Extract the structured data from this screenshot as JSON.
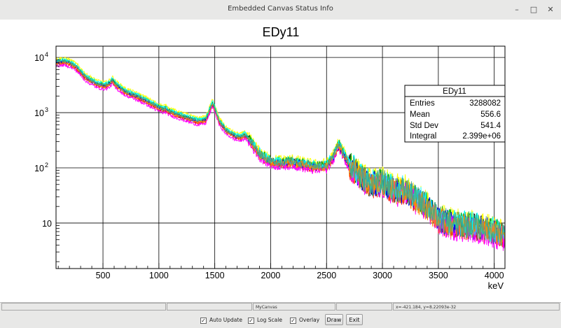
{
  "window": {
    "title": "Embedded Canvas Status Info",
    "minimize_icon": "minimize-icon",
    "maximize_icon": "maximize-icon",
    "close_icon": "close-icon"
  },
  "chart_data": {
    "type": "line",
    "title": "EDy11",
    "xlabel": "keV",
    "ylabel": "",
    "log_y": true,
    "xlim": [
      80,
      4096
    ],
    "ylim": [
      1.5,
      16000
    ],
    "grid": true,
    "x_ticks": [
      "500",
      "1000",
      "1500",
      "2000",
      "2500",
      "3000",
      "3500",
      "4000"
    ],
    "y_ticks": [
      {
        "label": "10",
        "exp": "4"
      },
      {
        "label": "10",
        "exp": "3"
      },
      {
        "label": "10",
        "exp": "2"
      },
      {
        "label": "10",
        "exp": ""
      }
    ],
    "series_colors": [
      "#000000",
      "#ff0000",
      "#ffff00",
      "#00aa00",
      "#0000ff",
      "#ff00ff",
      "#00ffff",
      "#ff8800",
      "#44aa88"
    ],
    "envelope_x": [
      80,
      150,
      200,
      260,
      350,
      450,
      520,
      560,
      585,
      610,
      700,
      800,
      900,
      980,
      1040,
      1060,
      1080,
      1150,
      1250,
      1350,
      1420,
      1460,
      1480,
      1500,
      1540,
      1600,
      1680,
      1730,
      1770,
      1800,
      1900,
      2000,
      2100,
      2200,
      2300,
      2400,
      2500,
      2560,
      2600,
      2614,
      2640,
      2700,
      2800,
      2900,
      3000,
      3100,
      3200,
      3300,
      3400,
      3500,
      3600,
      3700,
      3800,
      3900,
      4000,
      4096
    ],
    "envelope_y": [
      8200,
      8500,
      8000,
      6800,
      4300,
      3300,
      3100,
      3400,
      3900,
      3300,
      2400,
      2000,
      1600,
      1300,
      1150,
      1200,
      1100,
      950,
      820,
      700,
      750,
      1200,
      1500,
      1200,
      700,
      480,
      380,
      360,
      400,
      340,
      180,
      130,
      125,
      130,
      115,
      105,
      110,
      160,
      250,
      260,
      200,
      120,
      70,
      50,
      55,
      40,
      40,
      28,
      20,
      12,
      10,
      9,
      9,
      8,
      7,
      6
    ],
    "stats": {
      "title": "EDy11",
      "rows": [
        {
          "label": "Entries",
          "value": "3288082"
        },
        {
          "label": "Mean",
          "value": "556.6"
        },
        {
          "label": "Std Dev",
          "value": "541.4"
        },
        {
          "label": "Integral",
          "value": "2.399e+06"
        }
      ]
    }
  },
  "status": {
    "field1": "",
    "field2": "",
    "canvas_name": "MyCanvas",
    "field4": "",
    "coords": "x=-421.184, y=8.22093e-32"
  },
  "controls": {
    "auto_update": {
      "label": "Auto Update",
      "checked": true
    },
    "log_scale": {
      "label": "Log Scale",
      "checked": true
    },
    "overlay": {
      "label": "Overlay",
      "checked": true
    },
    "draw_label": "Draw",
    "exit_label": "Exit",
    "check_glyph": "✓"
  }
}
